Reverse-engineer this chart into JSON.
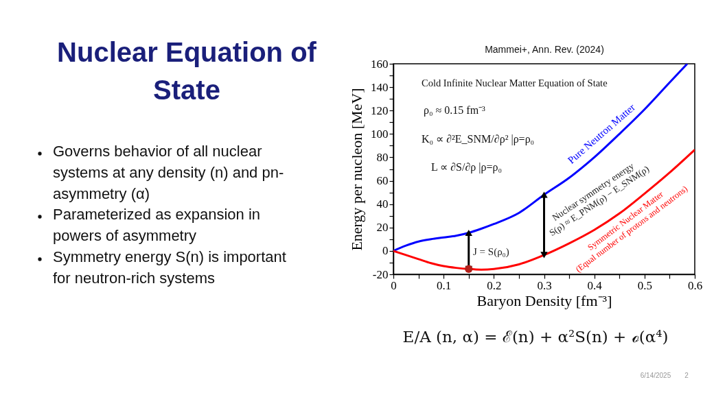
{
  "chart_data": {
    "type": "line",
    "title": "Nuclear Equation of\nState",
    "xlabel": "Baryon Density [fm⁻³]",
    "ylabel": "Energy per nucleon [MeV]",
    "xlim": [
      0,
      0.6
    ],
    "ylim": [
      -20,
      160
    ],
    "xticks": [
      0,
      {
        "value": 0.05,
        "label": null
      },
      0.1,
      {
        "value": 0.15,
        "label": null
      },
      0.2,
      {
        "value": 0.25,
        "label": null
      },
      0.3,
      {
        "value": 0.35,
        "label": null
      },
      0.4,
      {
        "value": 0.45,
        "label": null
      },
      0.5,
      {
        "value": 0.55,
        "label": null
      },
      0.6
    ],
    "yticks": [
      -20,
      {
        "value": -10,
        "label": null
      },
      0,
      {
        "value": 10,
        "label": null
      },
      20,
      {
        "value": 30,
        "label": null
      },
      40,
      {
        "value": 50,
        "label": null
      },
      60,
      {
        "value": 70,
        "label": null
      },
      80,
      {
        "value": 90,
        "label": null
      },
      100,
      {
        "value": 110,
        "label": null
      },
      120,
      {
        "value": 130,
        "label": null
      },
      140,
      {
        "value": 150,
        "label": null
      },
      160
    ],
    "grid": false,
    "series": [
      {
        "name": "Pure Neutron Matter",
        "color": "#0000ff",
        "x": [
          0,
          0.025,
          0.05,
          0.075,
          0.1,
          0.125,
          0.15,
          0.175,
          0.2,
          0.25,
          0.3,
          0.35,
          0.4,
          0.45,
          0.5,
          0.55,
          0.585
        ],
        "values": [
          0,
          4.5,
          8,
          10,
          11.5,
          13,
          15.5,
          19,
          23,
          32.5,
          48,
          62.5,
          80,
          100,
          121,
          144,
          160
        ]
      },
      {
        "name": "Symmetric Nuclear Matter\n(Equal number of protons and neutrons)",
        "color": "#ff0000",
        "x": [
          0,
          0.025,
          0.05,
          0.075,
          0.1,
          0.125,
          0.15,
          0.175,
          0.2,
          0.25,
          0.3,
          0.35,
          0.4,
          0.45,
          0.5,
          0.55,
          0.6
        ],
        "values": [
          0,
          -3.5,
          -7,
          -10.5,
          -13,
          -14.5,
          -15.5,
          -16,
          -15.5,
          -11.5,
          -3.5,
          6.5,
          18,
          32,
          49,
          67,
          86.5
        ]
      },
      {
        "color": "#000000",
        "marker": "triangle",
        "x": [
          0.15,
          0.15
        ],
        "values": [
          -15.5,
          15.5
        ]
      },
      {
        "color": "#000000",
        "marker": "triangle",
        "x": [
          0.3,
          0.3
        ],
        "values": [
          -3.5,
          48
        ]
      },
      {
        "type": "scatter",
        "marker": "circle",
        "color": "#b3201a",
        "x": [
          0.15
        ],
        "values": [
          -15.5
        ]
      }
    ],
    "annotations": [
      "Mammei+, Ann. Rev. (2024)",
      "Cold Infinite Nuclear Matter Equation of State",
      "ρ₀ ≈ 0.15 fm⁻³",
      "K₀ ∝ ∂²E_SNM/∂ρ² |ρ=ρ₀",
      "L ∝ ∂S/∂ρ |ρ=ρ₀",
      "J = S(ρ₀)",
      "Nuclear symmetry energy\nS(ρ) ≈ E_PNM(ρ) − E_SNM(ρ)",
      "Governs behavior of all nuclear\nsystems at any density (n) and pn-\nasymmetry (α)",
      "Parameterized as expansion in\npowers of asymmetry",
      "Symmetry energy S(n) is important\nfor neutron-rich systems",
      "E/A (n, α) = ℰ(n) + α²S(n) + ℴ(α⁴)",
      "6/14/2025",
      "2"
    ]
  }
}
